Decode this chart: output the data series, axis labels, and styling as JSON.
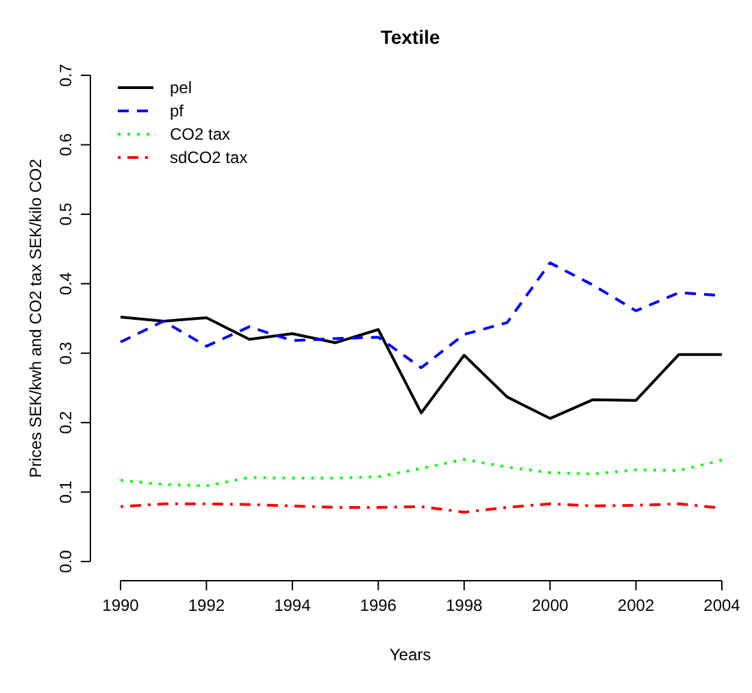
{
  "chart_data": {
    "type": "line",
    "title": "Textile",
    "xlabel": "Years",
    "ylabel": "Prices SEK/kwh and CO2 tax SEK/kilo CO2",
    "x": [
      1990,
      1991,
      1992,
      1993,
      1994,
      1995,
      1996,
      1997,
      1998,
      1999,
      2000,
      2001,
      2002,
      2003,
      2004
    ],
    "series": [
      {
        "name": "pel",
        "color": "#000000",
        "line_style": "solid",
        "values": [
          0.352,
          0.346,
          0.351,
          0.32,
          0.328,
          0.315,
          0.334,
          0.214,
          0.297,
          0.237,
          0.206,
          0.233,
          0.232,
          0.298,
          0.298
        ]
      },
      {
        "name": "pf",
        "color": "#0000ff",
        "line_style": "dashed",
        "values": [
          0.316,
          0.346,
          0.31,
          0.338,
          0.318,
          0.321,
          0.323,
          0.279,
          0.327,
          0.344,
          0.43,
          0.398,
          0.361,
          0.387,
          0.383
        ]
      },
      {
        "name": "CO2 tax",
        "color": "#00ff00",
        "line_style": "dotted",
        "values": [
          0.117,
          0.111,
          0.109,
          0.121,
          0.12,
          0.12,
          0.122,
          0.134,
          0.147,
          0.136,
          0.128,
          0.126,
          0.132,
          0.131,
          0.146
        ]
      },
      {
        "name": "sdCO2 tax",
        "color": "#ff0000",
        "line_style": "dashdot",
        "values": [
          0.079,
          0.083,
          0.083,
          0.082,
          0.08,
          0.078,
          0.078,
          0.079,
          0.071,
          0.078,
          0.083,
          0.08,
          0.081,
          0.083,
          0.077
        ]
      }
    ],
    "xlim": [
      1990,
      2004
    ],
    "ylim": [
      0,
      0.7
    ],
    "xticks": [
      1990,
      1992,
      1994,
      1996,
      1998,
      2000,
      2002,
      2004
    ],
    "yticks": [
      {
        "value": 0,
        "label": "0.0"
      },
      {
        "value": 0.1,
        "label": "0.1"
      },
      {
        "value": 0.2,
        "label": "0.2"
      },
      {
        "value": 0.3,
        "label": "0.3"
      },
      {
        "value": 0.4,
        "label": "0.4"
      },
      {
        "value": 0.5,
        "label": "0.5"
      },
      {
        "value": 0.6,
        "label": "0.6"
      },
      {
        "value": 0.7,
        "label": "0.7"
      }
    ],
    "legend": "top left",
    "marker": "none",
    "grid": false
  }
}
